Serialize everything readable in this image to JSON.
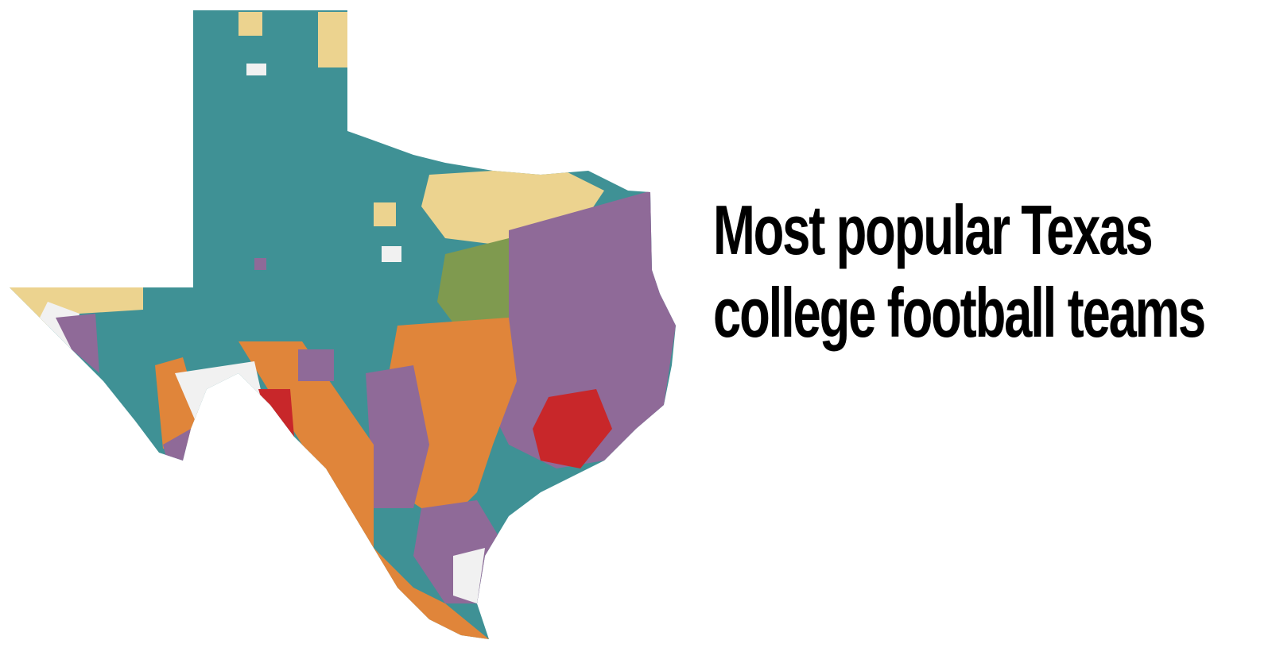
{
  "title": "Most popular Texas college football teams"
}
